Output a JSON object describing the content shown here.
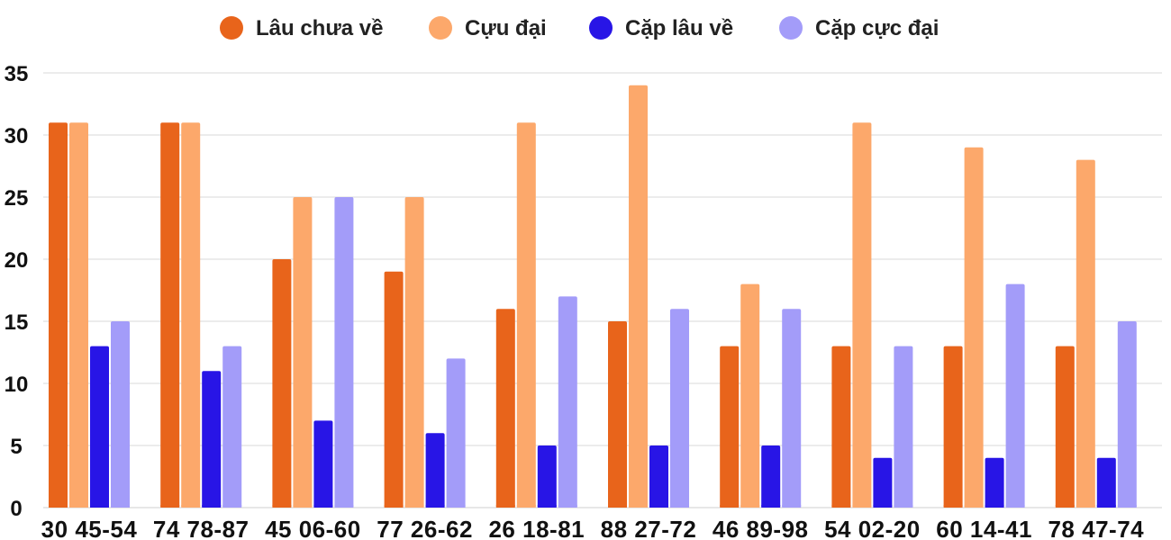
{
  "chart_data": {
    "type": "bar",
    "categories": [
      "30 45-54",
      "74 78-87",
      "45 06-60",
      "77 26-62",
      "26 18-81",
      "88 27-72",
      "46 89-98",
      "54 02-20",
      "60 14-41",
      "78 47-74"
    ],
    "series": [
      {
        "name": "Lâu chưa về",
        "color": "#e8641b",
        "values": [
          31,
          31,
          20,
          19,
          16,
          15,
          13,
          13,
          13,
          13
        ]
      },
      {
        "name": "Cựu đại",
        "color": "#fca86b",
        "values": [
          31,
          31,
          25,
          25,
          31,
          34,
          18,
          31,
          29,
          28
        ]
      },
      {
        "name": "Cặp lâu về",
        "color": "#2815e6",
        "values": [
          13,
          11,
          7,
          6,
          5,
          5,
          5,
          4,
          4,
          4
        ]
      },
      {
        "name": "Cặp cực đại",
        "color": "#a39cf9",
        "values": [
          15,
          13,
          25,
          12,
          17,
          16,
          16,
          13,
          18,
          15
        ]
      }
    ],
    "yticks": [
      0,
      5,
      10,
      15,
      20,
      25,
      30,
      35
    ],
    "ylim": [
      0,
      35
    ],
    "grid": true,
    "legend": "top-center",
    "title": "",
    "xlabel": "",
    "ylabel": ""
  }
}
